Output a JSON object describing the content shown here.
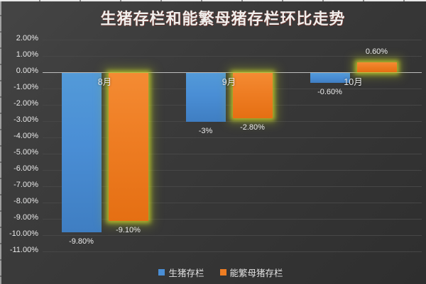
{
  "title": "生猪存栏和能繁母猪存栏环比走势",
  "chart_data": {
    "type": "bar",
    "title": "生猪存栏和能繁母猪存栏环比走势",
    "categories": [
      "8月",
      "9月",
      "10月"
    ],
    "series": [
      {
        "name": "生猪存栏",
        "values": [
          -9.8,
          -3,
          -0.6
        ],
        "data_labels": [
          "-9.80%",
          "-3%",
          "-0.60%"
        ],
        "color": "#4a8ed5",
        "highlighted": false
      },
      {
        "name": "能繁母猪存栏",
        "values": [
          -9.1,
          -2.8,
          0.6
        ],
        "data_labels": [
          "-9.10%",
          "-2.80%",
          "0.60%"
        ],
        "color": "#ee7d23",
        "highlighted": true,
        "glow_color": "#b9c72c"
      }
    ],
    "xlabel": "",
    "ylabel": "",
    "ylim": [
      -11,
      2
    ],
    "ytick_values": [
      2,
      1,
      0,
      -1,
      -2,
      -3,
      -4,
      -5,
      -6,
      -7,
      -8,
      -9,
      -10,
      -11
    ],
    "ytick_labels": [
      "2.00%",
      "1.00%",
      "0.00%",
      "-1.00%",
      "-2.00%",
      "-3.00%",
      "-4.00%",
      "-5.00%",
      "-6.00%",
      "-7.00%",
      "-8.00%",
      "-9.00%",
      "-10.00%",
      "-11.00%"
    ],
    "grid": true,
    "legend_position": "bottom",
    "legend": [
      "生猪存栏",
      "能繁母猪存栏"
    ]
  },
  "colors": {
    "background": "#393939",
    "title_text": "#efeeec",
    "axis_text": "#e9e9e9",
    "gridline": "#474747",
    "zero_line": "#bdbdbd",
    "bar_blue": "#4a8ed5",
    "bar_orange": "#ee7d23",
    "highlight_glow": "#b9c72c"
  }
}
